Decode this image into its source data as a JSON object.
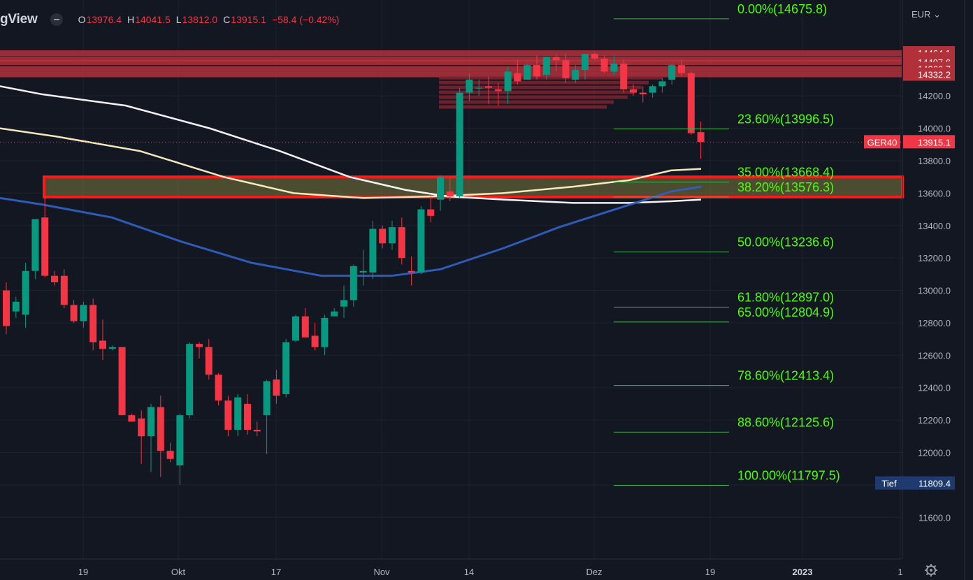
{
  "header": {
    "logo_text": "gView",
    "ohlc": [
      {
        "k": "O",
        "v": "13976.4"
      },
      {
        "k": "H",
        "v": "14041.5"
      },
      {
        "k": "L",
        "v": "13812.0"
      },
      {
        "k": "C",
        "v": "13915.1"
      }
    ],
    "change": "−58.4 (−0.42%)",
    "currency": "EUR"
  },
  "chart_data": {
    "type": "candlestick",
    "symbol_label": "GER40",
    "last_price": "13915.1",
    "low_label": "Tief",
    "low_value": "11809.4",
    "ylim": [
      11420,
      14740
    ],
    "y_ticks": [
      11600,
      11800,
      12000,
      12200,
      12400,
      12600,
      12800,
      13000,
      13200,
      13400,
      13600,
      13800,
      14000,
      14200
    ],
    "x_ticks": [
      "19",
      "Okt",
      "17",
      "Nov",
      "14",
      "Dez",
      "19",
      "2023",
      "1"
    ],
    "resistance_levels": [
      {
        "label": "14464.1",
        "value": 14464.1
      },
      {
        "label": "14427.2",
        "value": 14427.2
      },
      {
        "label": "14407.6",
        "value": 14407.6
      },
      {
        "label": "14366.7",
        "value": 14366.7
      },
      {
        "label": "14332.2",
        "value": 14332.2
      }
    ],
    "fibonacci": [
      {
        "label": "0.00%(14675.8)",
        "value": 14675.8
      },
      {
        "label": "23.60%(13996.5)",
        "value": 13996.5
      },
      {
        "label": "35.00%(13668.4)",
        "value": 13668.4
      },
      {
        "label": "38.20%(13576.3)",
        "value": 13576.3
      },
      {
        "label": "50.00%(13236.6)",
        "value": 13236.6
      },
      {
        "label": "61.80%(12897.0)",
        "value": 12897.0
      },
      {
        "label": "65.00%(12804.9)",
        "value": 12804.9
      },
      {
        "label": "78.60%(12413.4)",
        "value": 12413.4
      },
      {
        "label": "88.60%(12125.6)",
        "value": 12125.6
      },
      {
        "label": "100.00%(11797.5)",
        "value": 11797.5
      }
    ],
    "highlight_zone": [
      13576,
      13700
    ],
    "candles": [
      [
        13000,
        13050,
        12730,
        12780
      ],
      [
        12870,
        12960,
        12830,
        12930
      ],
      [
        12850,
        13170,
        12770,
        13120
      ],
      [
        13120,
        13440,
        13070,
        13440
      ],
      [
        13450,
        13580,
        13080,
        13090
      ],
      [
        13090,
        13120,
        13030,
        13050
      ],
      [
        13090,
        13130,
        12890,
        12910
      ],
      [
        12910,
        12940,
        12800,
        12810
      ],
      [
        12810,
        12930,
        12770,
        12910
      ],
      [
        12910,
        12950,
        12630,
        12680
      ],
      [
        12690,
        12820,
        12570,
        12640
      ],
      [
        12640,
        12660,
        12630,
        12650
      ],
      [
        12650,
        12640,
        12230,
        12230
      ],
      [
        12230,
        12240,
        12190,
        12190
      ],
      [
        12210,
        12260,
        11930,
        12100
      ],
      [
        12100,
        12300,
        11880,
        12280
      ],
      [
        12280,
        12350,
        11850,
        12010
      ],
      [
        12010,
        12060,
        11940,
        11960
      ],
      [
        11920,
        12240,
        11800,
        12230
      ],
      [
        12230,
        12680,
        12210,
        12670
      ],
      [
        12670,
        12680,
        12580,
        12650
      ],
      [
        12650,
        12700,
        12450,
        12480
      ],
      [
        12480,
        12490,
        12290,
        12320
      ],
      [
        12320,
        12350,
        12100,
        12140
      ],
      [
        12140,
        12360,
        12100,
        12340
      ],
      [
        12300,
        12360,
        12110,
        12140
      ],
      [
        12140,
        12190,
        12100,
        12130
      ],
      [
        12230,
        12450,
        11990,
        12440
      ],
      [
        12450,
        12510,
        12300,
        12350
      ],
      [
        12360,
        12700,
        12340,
        12680
      ],
      [
        12690,
        12850,
        12680,
        12840
      ],
      [
        12840,
        12890,
        12710,
        12710
      ],
      [
        12720,
        12800,
        12630,
        12650
      ],
      [
        12650,
        12850,
        12600,
        12830
      ],
      [
        12840,
        12890,
        12860,
        12870
      ],
      [
        12900,
        13030,
        12830,
        12940
      ],
      [
        12940,
        13160,
        12900,
        13150
      ],
      [
        13110,
        13250,
        13030,
        13120
      ],
      [
        13110,
        13430,
        13070,
        13380
      ],
      [
        13380,
        13400,
        13260,
        13290
      ],
      [
        13290,
        13430,
        13250,
        13390
      ],
      [
        13390,
        13450,
        13160,
        13200
      ],
      [
        13120,
        13210,
        13030,
        13110
      ],
      [
        13110,
        13520,
        13100,
        13500
      ],
      [
        13500,
        13580,
        13420,
        13460
      ],
      [
        13560,
        13710,
        13490,
        13700
      ],
      [
        13610,
        13700,
        13550,
        13580
      ],
      [
        13580,
        14250,
        13570,
        14220
      ],
      [
        14220,
        14340,
        14170,
        14300
      ],
      [
        14250,
        14300,
        14200,
        14250
      ],
      [
        14260,
        14320,
        14150,
        14250
      ],
      [
        14240,
        14280,
        14140,
        14230
      ],
      [
        14230,
        14380,
        14150,
        14350
      ],
      [
        14340,
        14420,
        14270,
        14290
      ],
      [
        14300,
        14400,
        14330,
        14390
      ],
      [
        14390,
        14450,
        14300,
        14320
      ],
      [
        14330,
        14440,
        14300,
        14440
      ],
      [
        14440,
        14460,
        14350,
        14420
      ],
      [
        14420,
        14460,
        14280,
        14310
      ],
      [
        14300,
        14390,
        14280,
        14360
      ],
      [
        14360,
        14460,
        14300,
        14460
      ],
      [
        14460,
        14470,
        14420,
        14430
      ],
      [
        14430,
        14450,
        14340,
        14350
      ],
      [
        14350,
        14450,
        14330,
        14400
      ],
      [
        14400,
        14420,
        14220,
        14240
      ],
      [
        14240,
        14270,
        14200,
        14220
      ],
      [
        14220,
        14260,
        14160,
        14210
      ],
      [
        14220,
        14270,
        14190,
        14260
      ],
      [
        14260,
        14310,
        14220,
        14290
      ],
      [
        14300,
        14400,
        14270,
        14390
      ],
      [
        14390,
        14420,
        14320,
        14340
      ],
      [
        14340,
        14350,
        13960,
        13970
      ],
      [
        13976.4,
        14041.5,
        13812.0,
        13915.1
      ]
    ],
    "moving_averages": [
      {
        "color": "#ffffff",
        "values": [
          [
            0,
            14260
          ],
          [
            60,
            14210
          ],
          [
            180,
            14140
          ],
          [
            300,
            14000
          ],
          [
            400,
            13860
          ],
          [
            500,
            13700
          ],
          [
            580,
            13620
          ],
          [
            640,
            13580
          ],
          [
            720,
            13560
          ],
          [
            820,
            13540
          ],
          [
            900,
            13540
          ],
          [
            960,
            13550
          ],
          [
            1003,
            13560
          ]
        ]
      },
      {
        "color": "#fff3c4",
        "values": [
          [
            0,
            14000
          ],
          [
            80,
            13950
          ],
          [
            200,
            13860
          ],
          [
            320,
            13700
          ],
          [
            420,
            13600
          ],
          [
            520,
            13570
          ],
          [
            620,
            13580
          ],
          [
            720,
            13600
          ],
          [
            820,
            13640
          ],
          [
            900,
            13680
          ],
          [
            960,
            13740
          ],
          [
            1003,
            13750
          ]
        ]
      },
      {
        "color": "#2f5fbf",
        "values": [
          [
            0,
            13570
          ],
          [
            60,
            13530
          ],
          [
            160,
            13450
          ],
          [
            260,
            13300
          ],
          [
            360,
            13170
          ],
          [
            460,
            13090
          ],
          [
            560,
            13090
          ],
          [
            630,
            13130
          ],
          [
            720,
            13260
          ],
          [
            800,
            13390
          ],
          [
            880,
            13500
          ],
          [
            960,
            13610
          ],
          [
            1003,
            13640
          ]
        ]
      }
    ]
  }
}
